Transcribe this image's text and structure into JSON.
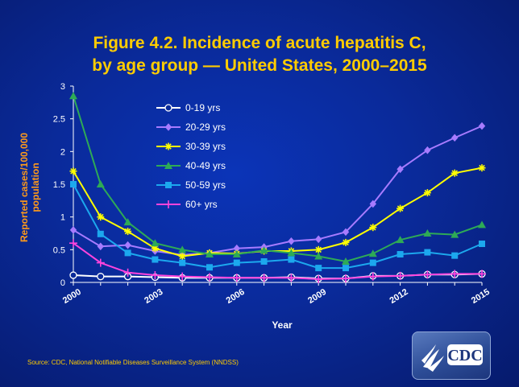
{
  "title_line1": "Figure 4.2. Incidence of acute hepatitis C,",
  "title_line2": "by age group — United States, 2000–2015",
  "source": "Source: CDC,  National Notifiable Diseases Surveillance System (NNDSS)",
  "logo_text": "CDC",
  "colors": {
    "background": "#0a2a9a",
    "title": "#ffcc00",
    "axis_label": "#ff9a1a",
    "text": "#ffffff"
  },
  "chart_data": {
    "type": "line",
    "title": "Figure 4.2. Incidence of acute hepatitis C, by age group — United States, 2000–2015",
    "xlabel": "Year",
    "ylabel": "Reported cases/100,000 population",
    "x": [
      2000,
      2001,
      2002,
      2003,
      2004,
      2005,
      2006,
      2007,
      2008,
      2009,
      2010,
      2011,
      2012,
      2013,
      2014,
      2015
    ],
    "xticks": [
      "2000",
      "2003",
      "2006",
      "2009",
      "2012",
      "2015"
    ],
    "yticks": [
      "0",
      "0.5",
      "1",
      "1.5",
      "2",
      "2.5",
      "3"
    ],
    "ylim": [
      0,
      3
    ],
    "grid": false,
    "legend_position": "top-left",
    "series": [
      {
        "name": "0-19 yrs",
        "color": "#ffffff",
        "marker": "open-circle",
        "values": [
          0.11,
          0.09,
          0.09,
          0.08,
          0.07,
          0.07,
          0.07,
          0.07,
          0.08,
          0.06,
          0.06,
          0.1,
          0.1,
          0.12,
          0.12,
          0.13
        ]
      },
      {
        "name": "20-29 yrs",
        "color": "#a77bff",
        "marker": "diamond",
        "values": [
          0.8,
          0.55,
          0.57,
          0.48,
          0.42,
          0.45,
          0.52,
          0.54,
          0.63,
          0.66,
          0.77,
          1.2,
          1.73,
          2.02,
          2.21,
          2.39
        ]
      },
      {
        "name": "30-39 yrs",
        "color": "#ffff00",
        "marker": "star",
        "values": [
          1.7,
          1.0,
          0.78,
          0.52,
          0.4,
          0.45,
          0.44,
          0.48,
          0.48,
          0.5,
          0.61,
          0.84,
          1.13,
          1.37,
          1.67,
          1.75
        ]
      },
      {
        "name": "40-49 yrs",
        "color": "#2eaa56",
        "marker": "triangle",
        "values": [
          2.85,
          1.5,
          0.92,
          0.6,
          0.5,
          0.43,
          0.43,
          0.49,
          0.45,
          0.4,
          0.32,
          0.44,
          0.65,
          0.75,
          0.73,
          0.88
        ]
      },
      {
        "name": "50-59 yrs",
        "color": "#1ca8ee",
        "marker": "square",
        "values": [
          1.5,
          0.74,
          0.45,
          0.35,
          0.3,
          0.23,
          0.3,
          0.32,
          0.35,
          0.22,
          0.22,
          0.3,
          0.43,
          0.46,
          0.41,
          0.59
        ]
      },
      {
        "name": "60+ yrs",
        "color": "#ff44dd",
        "marker": "plus",
        "values": [
          0.6,
          0.3,
          0.15,
          0.11,
          0.09,
          0.08,
          0.07,
          0.07,
          0.07,
          0.05,
          0.06,
          0.09,
          0.1,
          0.12,
          0.13,
          0.13
        ]
      }
    ]
  }
}
